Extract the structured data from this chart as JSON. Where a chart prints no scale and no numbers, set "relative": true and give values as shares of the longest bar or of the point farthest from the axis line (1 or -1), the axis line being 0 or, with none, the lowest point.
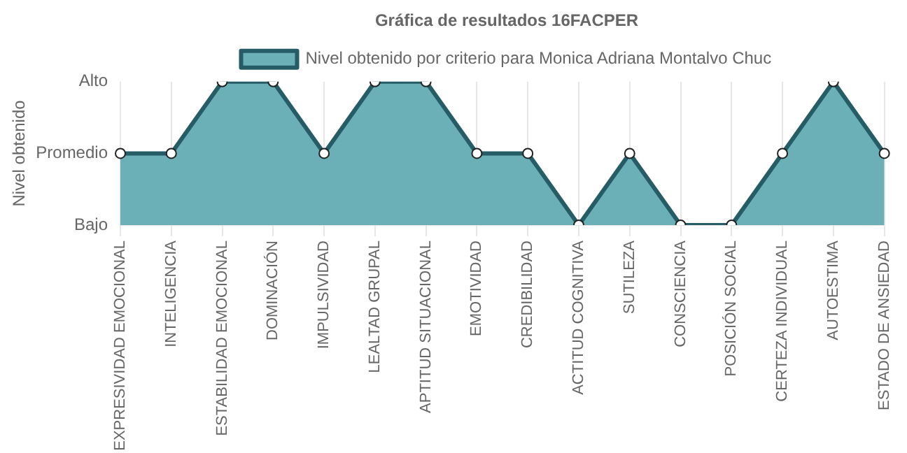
{
  "chart_data": {
    "type": "area",
    "title": "Gráfica de resultados 16FACPER",
    "ylabel": "Nivel obtenido",
    "categories": [
      "EXPRESIVIDAD EMOCIONAL",
      "INTELIGENCIA",
      "ESTABILIDAD EMOCIONAL",
      "DOMINACIÓN",
      "IMPULSIVIDAD",
      "LEALTAD GRUPAL",
      "APTITUD SITUACIONAL",
      "EMOTIVIDAD",
      "CREDIBILIDAD",
      "ACTITUD COGNITIVA",
      "SUTILEZA",
      "CONSCIENCIA",
      "POSICIÓN SOCIAL",
      "CERTEZA INDIVIDUAL",
      "AUTOESTIMA",
      "ESTADO DE ANSIEDAD"
    ],
    "series": [
      {
        "name": "Nivel obtenido por criterio para Monica Adriana Montalvo Chuc",
        "color": "#265c66",
        "values": [
          0.5,
          0.5,
          1,
          1,
          0.5,
          1,
          1,
          0.5,
          0.5,
          0,
          0.5,
          0,
          0,
          0.5,
          1,
          0.5
        ]
      }
    ],
    "relative": true,
    "annotations": [
      "Alto",
      "Promedio",
      "Bajo"
    ],
    "grid": "x",
    "legend": "top",
    "marker": "circle",
    "line_style": "solid"
  }
}
